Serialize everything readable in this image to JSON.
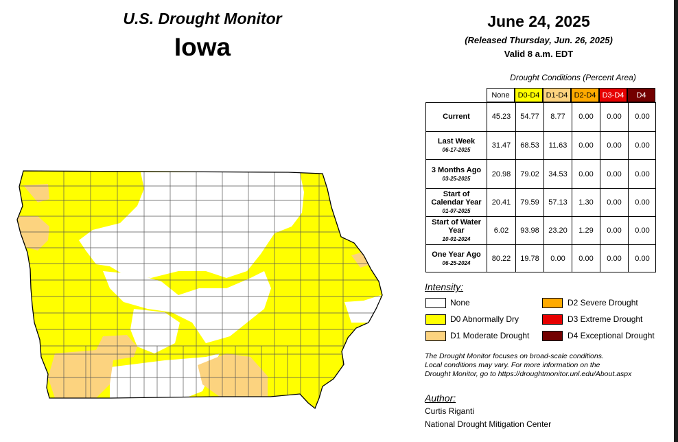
{
  "header": {
    "title": "U.S. Drought Monitor",
    "state": "Iowa",
    "date": "June 24, 2025",
    "released": "(Released Thursday, Jun. 26, 2025)",
    "valid": "Valid 8 a.m. EDT"
  },
  "table": {
    "caption": "Drought Conditions (Percent Area)",
    "columns": [
      "None",
      "D0-D4",
      "D1-D4",
      "D2-D4",
      "D3-D4",
      "D4"
    ],
    "column_colors": [
      "#ffffff",
      "#ffff00",
      "#fcd37f",
      "#ffaa00",
      "#e60000",
      "#730000"
    ],
    "column_text_colors": [
      "#000000",
      "#000000",
      "#000000",
      "#000000",
      "#ffffff",
      "#ffffff"
    ],
    "rows": [
      {
        "label": "Current",
        "sub": "",
        "values": [
          "45.23",
          "54.77",
          "8.77",
          "0.00",
          "0.00",
          "0.00"
        ]
      },
      {
        "label": "Last Week",
        "sub": "06-17-2025",
        "values": [
          "31.47",
          "68.53",
          "11.63",
          "0.00",
          "0.00",
          "0.00"
        ]
      },
      {
        "label": "3 Months Ago",
        "sub": "03-25-2025",
        "values": [
          "20.98",
          "79.02",
          "34.53",
          "0.00",
          "0.00",
          "0.00"
        ]
      },
      {
        "label": "Start of Calendar Year",
        "sub": "01-07-2025",
        "values": [
          "20.41",
          "79.59",
          "57.13",
          "1.30",
          "0.00",
          "0.00"
        ]
      },
      {
        "label": "Start of Water Year",
        "sub": "10-01-2024",
        "values": [
          "6.02",
          "93.98",
          "23.20",
          "1.29",
          "0.00",
          "0.00"
        ]
      },
      {
        "label": "One Year Ago",
        "sub": "06-25-2024",
        "values": [
          "80.22",
          "19.78",
          "0.00",
          "0.00",
          "0.00",
          "0.00"
        ]
      }
    ]
  },
  "legend": {
    "title": "Intensity:",
    "items": [
      {
        "label": "None",
        "color": "#ffffff"
      },
      {
        "label": "D0 Abnormally Dry",
        "color": "#ffff00"
      },
      {
        "label": "D1 Moderate Drought",
        "color": "#fcd37f"
      },
      {
        "label": "D2 Severe Drought",
        "color": "#ffaa00"
      },
      {
        "label": "D3 Extreme Drought",
        "color": "#e60000"
      },
      {
        "label": "D4 Exceptional Drought",
        "color": "#730000"
      }
    ]
  },
  "note": {
    "line1": "The Drought Monitor focuses on broad-scale conditions.",
    "line2": "Local conditions may vary. For more information on the",
    "line3": "Drought Monitor, go to https://droughtmonitor.unl.edu/About.aspx"
  },
  "author": {
    "title": "Author:",
    "name": "Curtis Riganti",
    "org": "National Drought Mitigation Center"
  },
  "map_colors": {
    "none": "#ffffff",
    "d0": "#ffff00",
    "d1": "#fcd37f",
    "county_lines": "#555555"
  }
}
